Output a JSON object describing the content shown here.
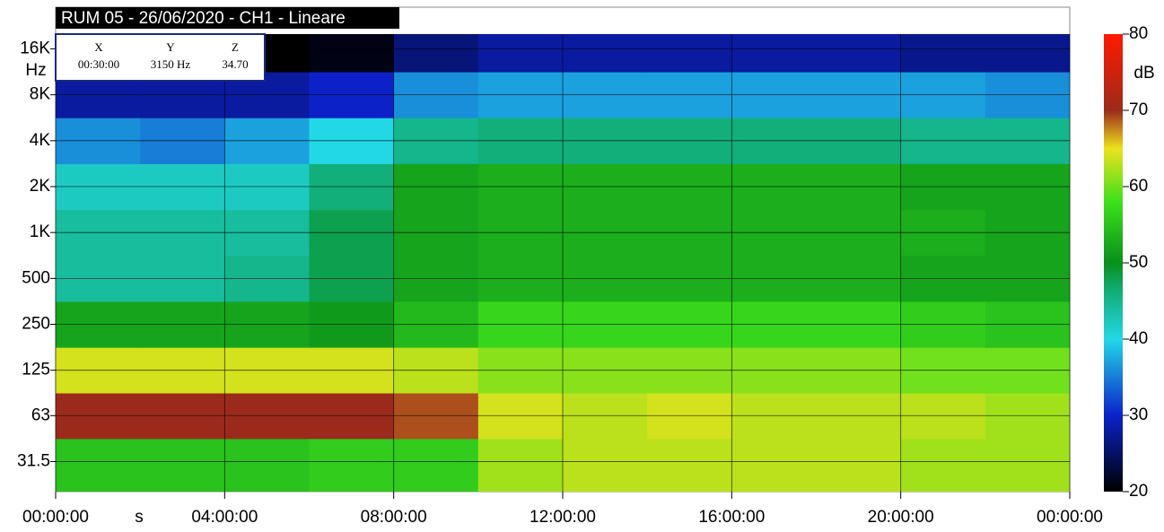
{
  "chart_data": {
    "type": "heatmap",
    "title": "RUM 05 - 26/06/2020 - CH1 - Lineare",
    "x_axis_unit": "s",
    "y_axis_unit": "Hz",
    "colorbar_unit": "dB",
    "cursor": {
      "x_label": "X",
      "x_value": "00:30:00",
      "y_label": "Y",
      "y_value": "3150 Hz",
      "z_label": "Z",
      "z_value": "34.70"
    },
    "log_y": true,
    "grid": true,
    "xlim": [
      0,
      24
    ],
    "xticks": [
      {
        "value": 0,
        "label": "00:00:00"
      },
      {
        "value": 4,
        "label": "04:00:00"
      },
      {
        "value": 8,
        "label": "08:00:00"
      },
      {
        "value": 12,
        "label": "12:00:00"
      },
      {
        "value": 16,
        "label": "16:00:00"
      },
      {
        "value": 20,
        "label": "20:00:00"
      },
      {
        "value": 24,
        "label": "00:00:00"
      }
    ],
    "ylim": [
      20,
      20000
    ],
    "yticks": [
      31.5,
      63,
      125,
      250,
      500,
      {
        "value": 1000,
        "label": "1K"
      },
      {
        "value": 2000,
        "label": "2K"
      },
      {
        "value": 4000,
        "label": "4K"
      },
      {
        "value": 8000,
        "label": "8K"
      },
      {
        "value": 16000,
        "label": "16K"
      }
    ],
    "zlim": [
      20,
      80
    ],
    "zticks": [
      20,
      30,
      40,
      50,
      60,
      70,
      80
    ],
    "colorscale": [
      [
        20,
        "#000000"
      ],
      [
        30,
        "#0c22c8"
      ],
      [
        40,
        "#22d8e6"
      ],
      [
        47,
        "#10a868"
      ],
      [
        50,
        "#08901c"
      ],
      [
        58,
        "#3ee01c"
      ],
      [
        65,
        "#ece21c"
      ],
      [
        70,
        "#9c2a1c"
      ],
      [
        80,
        "#ff1a00"
      ]
    ],
    "x": [
      1,
      3,
      5,
      7,
      9,
      11,
      13,
      15,
      17,
      19,
      21,
      23
    ],
    "y": [
      31.5,
      63,
      125,
      250,
      500,
      1000,
      2000,
      4000,
      8000,
      16000
    ],
    "z": [
      [
        55,
        55,
        55,
        56,
        56,
        62,
        63,
        63,
        63,
        63,
        62,
        62
      ],
      [
        70,
        70,
        70,
        70,
        69,
        64,
        63,
        64,
        63,
        63,
        63,
        62
      ],
      [
        64,
        64,
        64,
        64,
        63,
        61,
        61,
        61,
        61,
        61,
        60,
        60
      ],
      [
        52,
        52,
        52,
        51,
        54,
        57,
        57,
        57,
        57,
        57,
        56,
        55
      ],
      [
        44,
        44,
        45,
        48,
        52,
        53,
        53,
        53,
        53,
        53,
        52,
        52
      ],
      [
        44,
        44,
        44,
        48,
        52,
        53,
        53,
        53,
        53,
        53,
        53,
        52
      ],
      [
        42,
        42,
        42,
        46,
        52,
        53,
        53,
        53,
        53,
        53,
        52,
        52
      ],
      [
        36,
        35,
        37,
        40,
        45,
        46,
        46,
        46,
        46,
        46,
        45,
        45
      ],
      [
        28,
        28,
        28,
        30,
        36,
        37,
        37,
        37,
        37,
        37,
        37,
        36
      ],
      [
        20,
        20,
        20,
        21,
        26,
        28,
        28,
        28,
        28,
        28,
        27,
        27
      ]
    ]
  }
}
